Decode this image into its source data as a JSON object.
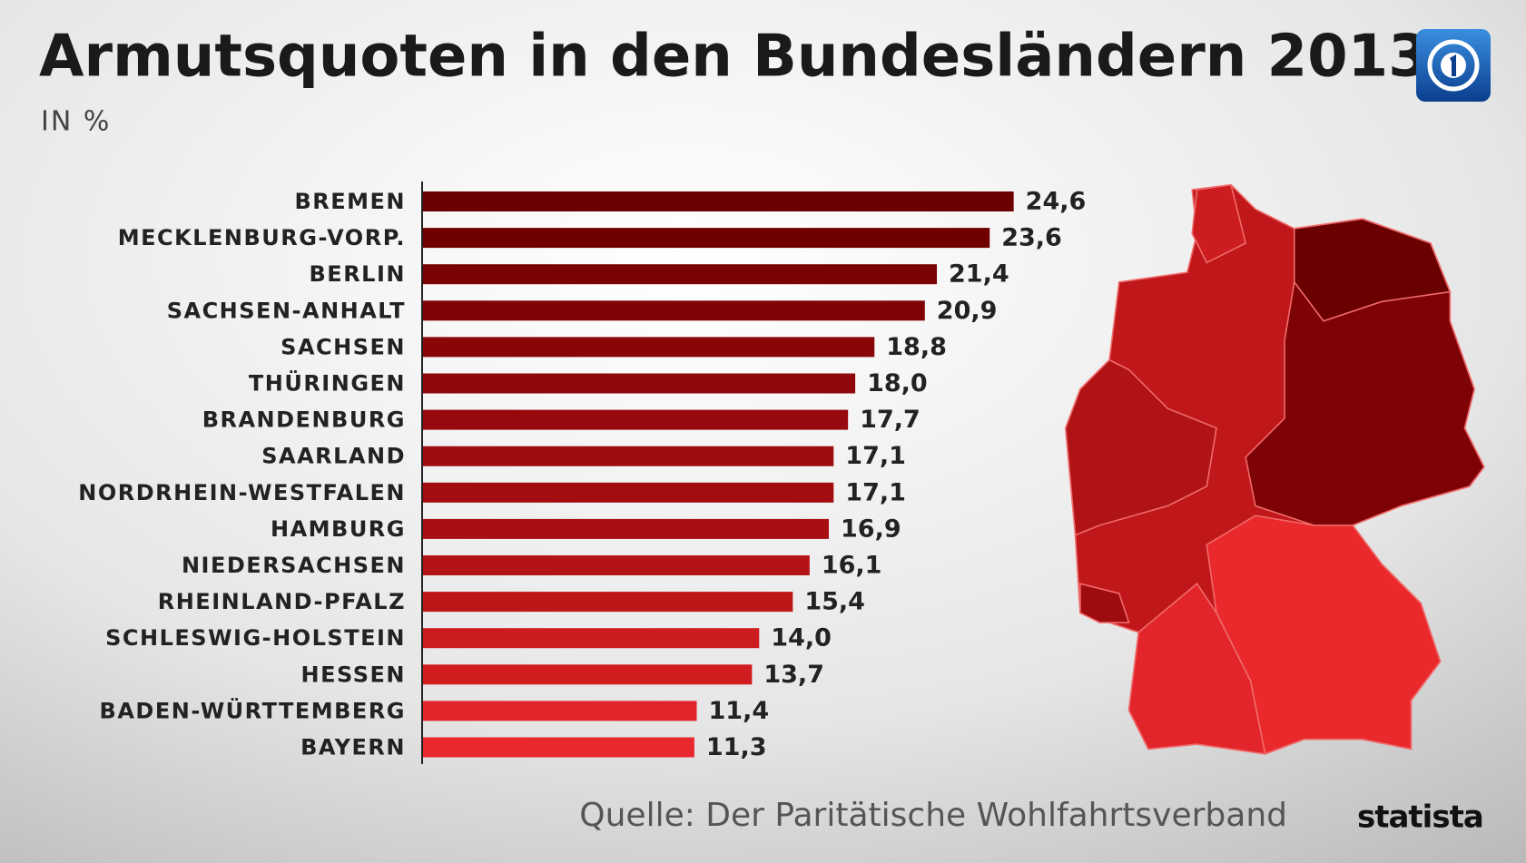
{
  "chart_data": {
    "type": "bar",
    "orientation": "horizontal",
    "title": "Armutsquoten in den Bundesländern 2013",
    "subtitle": "IN %",
    "categories": [
      "BREMEN",
      "MECKLENBURG-VORP.",
      "BERLIN",
      "SACHSEN-ANHALT",
      "SACHSEN",
      "THÜRINGEN",
      "BRANDENBURG",
      "SAARLAND",
      "NORDRHEIN-WESTFALEN",
      "HAMBURG",
      "NIEDERSACHSEN",
      "RHEINLAND-PFALZ",
      "SCHLESWIG-HOLSTEIN",
      "HESSEN",
      "BADEN-WÜRTTEMBERG",
      "BAYERN"
    ],
    "values": [
      24.6,
      23.6,
      21.4,
      20.9,
      18.8,
      18.0,
      17.7,
      17.1,
      17.1,
      16.9,
      16.1,
      15.4,
      14.0,
      13.7,
      11.4,
      11.3
    ],
    "value_labels": [
      "24,6",
      "23,6",
      "21,4",
      "20,9",
      "18,8",
      "18,0",
      "17,7",
      "17,1",
      "17,1",
      "16,9",
      "16,1",
      "15,4",
      "14,0",
      "13,7",
      "11,4",
      "11,3"
    ],
    "colors": [
      "#6a0000",
      "#700000",
      "#7a0204",
      "#800306",
      "#880508",
      "#90080a",
      "#96090c",
      "#9f0c0f",
      "#a20d10",
      "#a80f12",
      "#b41316",
      "#bd1619",
      "#cc1c1f",
      "#d11d20",
      "#e2252a",
      "#e8282c"
    ],
    "source": "Quelle: Der Paritätische Wohlfahrtsverband",
    "brand": "statista"
  }
}
